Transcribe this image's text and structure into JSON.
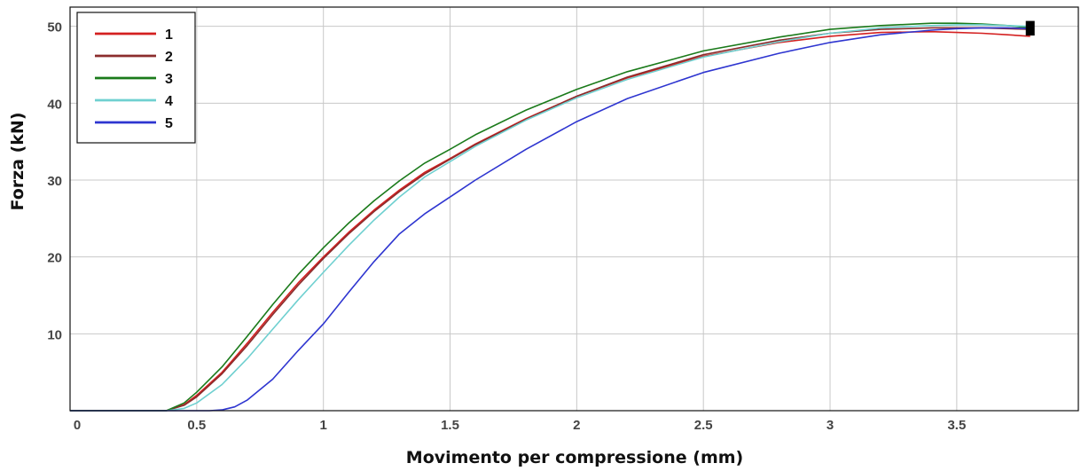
{
  "chart_data": {
    "type": "line",
    "title": "",
    "xlabel": "Movimento per compressione (mm)",
    "ylabel": "Forza (kN)",
    "xlim": [
      0,
      3.98
    ],
    "ylim": [
      0,
      52.5
    ],
    "x_ticks": [
      0,
      0.5,
      1,
      1.5,
      2,
      2.5,
      3,
      3.5
    ],
    "x_tick_labels": [
      "0",
      "0.5",
      "1",
      "1.5",
      "2",
      "2.5",
      "3",
      "3.5"
    ],
    "y_ticks": [
      10,
      20,
      30,
      40,
      50
    ],
    "y_tick_labels": [
      "10",
      "20",
      "30",
      "40",
      "50"
    ],
    "grid": true,
    "legend_position": "top-left",
    "end_marker": {
      "x": 3.79,
      "y_min": 48.8,
      "y_max": 50.7
    },
    "series": [
      {
        "name": "1",
        "color": "#d42020",
        "x": [
          0,
          0.38,
          0.45,
          0.5,
          0.6,
          0.7,
          0.8,
          0.9,
          1.0,
          1.1,
          1.2,
          1.3,
          1.4,
          1.5,
          1.6,
          1.8,
          2.0,
          2.2,
          2.5,
          2.8,
          3.0,
          3.2,
          3.4,
          3.5,
          3.6,
          3.7,
          3.79
        ],
        "y": [
          0,
          0,
          0.8,
          2.0,
          5.0,
          8.8,
          12.8,
          16.6,
          20.0,
          23.2,
          26.1,
          28.7,
          31.0,
          32.8,
          34.7,
          38.0,
          40.9,
          43.3,
          46.1,
          47.9,
          48.7,
          49.2,
          49.3,
          49.2,
          49.1,
          48.9,
          48.7
        ]
      },
      {
        "name": "2",
        "color": "#8b2d2d",
        "x": [
          0,
          0.38,
          0.45,
          0.5,
          0.6,
          0.7,
          0.8,
          0.9,
          1.0,
          1.1,
          1.2,
          1.3,
          1.4,
          1.5,
          1.6,
          1.8,
          2.0,
          2.2,
          2.5,
          2.8,
          3.0,
          3.2,
          3.4,
          3.5,
          3.6,
          3.7,
          3.79
        ],
        "y": [
          0,
          0,
          0.7,
          1.8,
          4.8,
          8.5,
          12.5,
          16.3,
          19.8,
          23.0,
          25.9,
          28.5,
          30.8,
          32.7,
          34.6,
          37.9,
          40.9,
          43.4,
          46.3,
          48.2,
          49.1,
          49.6,
          49.8,
          49.8,
          49.8,
          49.7,
          49.6
        ]
      },
      {
        "name": "3",
        "color": "#1a7a1a",
        "x": [
          0,
          0.38,
          0.45,
          0.5,
          0.6,
          0.7,
          0.8,
          0.9,
          1.0,
          1.1,
          1.2,
          1.3,
          1.4,
          1.5,
          1.6,
          1.8,
          2.0,
          2.2,
          2.5,
          2.8,
          3.0,
          3.2,
          3.4,
          3.5,
          3.6,
          3.7,
          3.79
        ],
        "y": [
          0,
          0,
          1.0,
          2.4,
          5.7,
          9.7,
          13.8,
          17.7,
          21.2,
          24.4,
          27.3,
          29.9,
          32.2,
          34.0,
          35.9,
          39.1,
          41.8,
          44.1,
          46.8,
          48.6,
          49.6,
          50.1,
          50.4,
          50.4,
          50.3,
          50.1,
          49.8
        ]
      },
      {
        "name": "4",
        "color": "#6fd0d0",
        "x": [
          0,
          0.38,
          0.45,
          0.5,
          0.6,
          0.7,
          0.8,
          0.9,
          1.0,
          1.1,
          1.2,
          1.3,
          1.4,
          1.5,
          1.6,
          1.8,
          2.0,
          2.2,
          2.5,
          2.8,
          3.0,
          3.2,
          3.4,
          3.5,
          3.6,
          3.7,
          3.79
        ],
        "y": [
          0,
          0,
          0.3,
          1.0,
          3.4,
          6.8,
          10.6,
          14.4,
          18.0,
          21.5,
          24.8,
          27.8,
          30.4,
          32.4,
          34.4,
          37.8,
          40.7,
          43.1,
          46.0,
          48.0,
          49.1,
          49.8,
          50.1,
          50.2,
          50.2,
          50.1,
          50.0
        ]
      },
      {
        "name": "5",
        "color": "#2e35d0",
        "x": [
          0,
          0.55,
          0.6,
          0.65,
          0.7,
          0.8,
          0.9,
          1.0,
          1.1,
          1.2,
          1.3,
          1.4,
          1.5,
          1.6,
          1.8,
          2.0,
          2.2,
          2.5,
          2.8,
          3.0,
          3.2,
          3.4,
          3.5,
          3.6,
          3.7,
          3.79
        ],
        "y": [
          0,
          0,
          0.1,
          0.5,
          1.4,
          4.1,
          7.8,
          11.3,
          15.4,
          19.4,
          23.0,
          25.6,
          27.8,
          30.0,
          34.0,
          37.6,
          40.6,
          44.0,
          46.5,
          47.9,
          48.9,
          49.5,
          49.7,
          49.8,
          49.8,
          49.7
        ]
      }
    ]
  }
}
